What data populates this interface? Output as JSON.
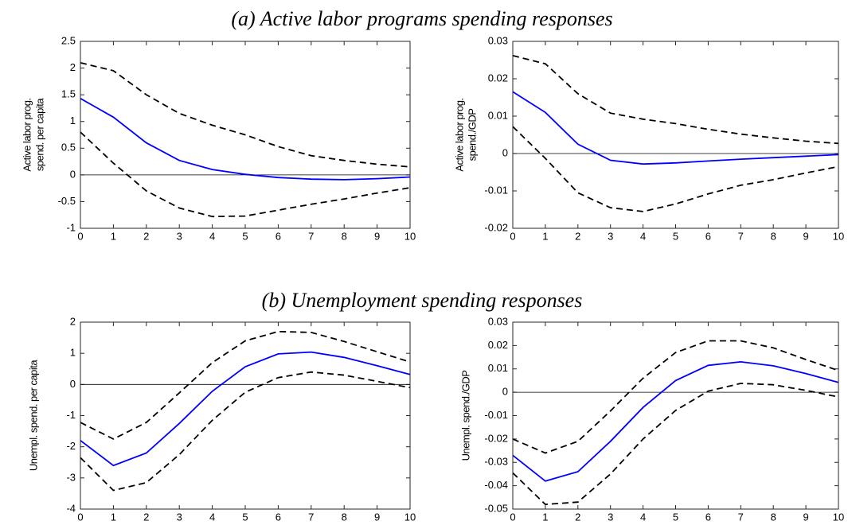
{
  "headings": [
    "(a) Active labor programs spending responses",
    "(b) Unemployment spending responses"
  ],
  "chart_data": [
    {
      "type": "line",
      "ylabel": [
        "Active labor prog.",
        "spend. per capita"
      ],
      "x": [
        0,
        1,
        2,
        3,
        4,
        5,
        6,
        7,
        8,
        9,
        10
      ],
      "xlim": [
        0,
        10
      ],
      "xticks": [
        0,
        1,
        2,
        3,
        4,
        5,
        6,
        7,
        8,
        9,
        10
      ],
      "ylim": [
        -1,
        2.5
      ],
      "yticks": [
        -1,
        -0.5,
        0,
        0.5,
        1,
        1.5,
        2,
        2.5
      ],
      "series": [
        {
          "color": "#0000ff",
          "linestyle": "solid",
          "values": [
            1.43,
            1.08,
            0.6,
            0.27,
            0.1,
            0.01,
            -0.05,
            -0.08,
            -0.09,
            -0.07,
            -0.04
          ]
        },
        {
          "color": "#000000",
          "linestyle": "dashed",
          "values": [
            2.1,
            1.95,
            1.5,
            1.15,
            0.93,
            0.75,
            0.53,
            0.36,
            0.27,
            0.2,
            0.15
          ]
        },
        {
          "color": "#000000",
          "linestyle": "dashed",
          "values": [
            0.8,
            0.22,
            -0.3,
            -0.62,
            -0.78,
            -0.77,
            -0.66,
            -0.55,
            -0.45,
            -0.34,
            -0.24
          ]
        }
      ]
    },
    {
      "type": "line",
      "ylabel": [
        "Active labor prog.",
        "spend./GDP"
      ],
      "x": [
        0,
        1,
        2,
        3,
        4,
        5,
        6,
        7,
        8,
        9,
        10
      ],
      "xlim": [
        0,
        10
      ],
      "xticks": [
        0,
        1,
        2,
        3,
        4,
        5,
        6,
        7,
        8,
        9,
        10
      ],
      "ylim": [
        -0.02,
        0.03
      ],
      "yticks": [
        -0.02,
        -0.01,
        0,
        0.01,
        0.02,
        0.03
      ],
      "series": [
        {
          "color": "#0000ff",
          "linestyle": "solid",
          "values": [
            0.0165,
            0.011,
            0.0025,
            -0.0018,
            -0.0028,
            -0.0025,
            -0.002,
            -0.0015,
            -0.0011,
            -0.0007,
            -0.0003
          ]
        },
        {
          "color": "#000000",
          "linestyle": "dashed",
          "values": [
            0.0262,
            0.024,
            0.016,
            0.0108,
            0.0092,
            0.008,
            0.0065,
            0.0052,
            0.0042,
            0.0033,
            0.0027
          ]
        },
        {
          "color": "#000000",
          "linestyle": "dashed",
          "values": [
            0.0072,
            -0.0013,
            -0.0105,
            -0.0145,
            -0.0155,
            -0.0135,
            -0.0108,
            -0.0085,
            -0.007,
            -0.0052,
            -0.0035
          ]
        }
      ]
    },
    {
      "type": "line",
      "ylabel": [
        "Unempl. spend. per capita"
      ],
      "x": [
        0,
        1,
        2,
        3,
        4,
        5,
        6,
        7,
        8,
        9,
        10
      ],
      "xlim": [
        0,
        10
      ],
      "xticks": [
        0,
        1,
        2,
        3,
        4,
        5,
        6,
        7,
        8,
        9,
        10
      ],
      "ylim": [
        -4,
        2
      ],
      "yticks": [
        -4,
        -3,
        -2,
        -1,
        0,
        1,
        2
      ],
      "series": [
        {
          "color": "#0000ff",
          "linestyle": "solid",
          "values": [
            -1.8,
            -2.6,
            -2.2,
            -1.25,
            -0.22,
            0.57,
            0.98,
            1.04,
            0.87,
            0.6,
            0.32
          ]
        },
        {
          "color": "#000000",
          "linestyle": "dashed",
          "values": [
            -1.22,
            -1.75,
            -1.22,
            -0.27,
            0.7,
            1.4,
            1.7,
            1.67,
            1.38,
            1.05,
            0.72
          ]
        },
        {
          "color": "#000000",
          "linestyle": "dashed",
          "values": [
            -2.35,
            -3.4,
            -3.15,
            -2.25,
            -1.15,
            -0.25,
            0.22,
            0.4,
            0.3,
            0.1,
            -0.1
          ]
        }
      ]
    },
    {
      "type": "line",
      "ylabel": [
        "Unempl. spend./GDP"
      ],
      "x": [
        0,
        1,
        2,
        3,
        4,
        5,
        6,
        7,
        8,
        9,
        10
      ],
      "xlim": [
        0,
        10
      ],
      "xticks": [
        0,
        1,
        2,
        3,
        4,
        5,
        6,
        7,
        8,
        9,
        10
      ],
      "ylim": [
        -0.05,
        0.03
      ],
      "yticks": [
        -0.05,
        -0.04,
        -0.03,
        -0.02,
        -0.01,
        0,
        0.01,
        0.02,
        0.03
      ],
      "series": [
        {
          "color": "#0000ff",
          "linestyle": "solid",
          "values": [
            -0.027,
            -0.038,
            -0.034,
            -0.021,
            -0.0065,
            0.005,
            0.0115,
            0.013,
            0.0113,
            0.008,
            0.0042
          ]
        },
        {
          "color": "#000000",
          "linestyle": "dashed",
          "values": [
            -0.02,
            -0.026,
            -0.021,
            -0.008,
            0.006,
            0.017,
            0.022,
            0.022,
            0.019,
            0.014,
            0.0093
          ]
        },
        {
          "color": "#000000",
          "linestyle": "dashed",
          "values": [
            -0.0345,
            -0.048,
            -0.047,
            -0.035,
            -0.02,
            -0.0078,
            0.0005,
            0.0038,
            0.0032,
            0.0008,
            -0.002
          ]
        }
      ]
    }
  ]
}
